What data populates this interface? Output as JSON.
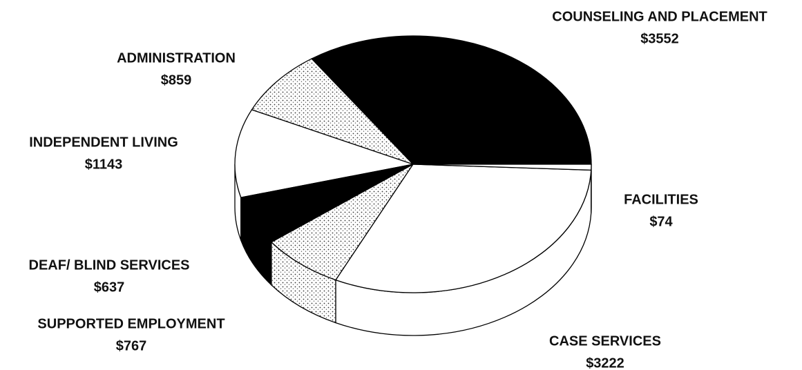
{
  "chart_data": {
    "type": "pie3d",
    "categories": [
      "COUNSELING AND PLACEMENT",
      "ADMINISTRATION",
      "INDEPENDENT LIVING",
      "DEAF/ BLIND SERVICES",
      "SUPPORTED EMPLOYMENT",
      "CASE SERVICES",
      "FACILITIES"
    ],
    "values": [
      3552,
      859,
      1143,
      637,
      767,
      3222,
      74
    ],
    "value_labels": [
      "$3552",
      "$859",
      "$1143",
      "$637",
      "$767",
      "$3222",
      "$74"
    ],
    "colors": [
      "#000000",
      "#bdbdbd",
      "#ffffff",
      "#000000",
      "#c8c8c8",
      "#ffffff",
      "#ffffff"
    ]
  }
}
